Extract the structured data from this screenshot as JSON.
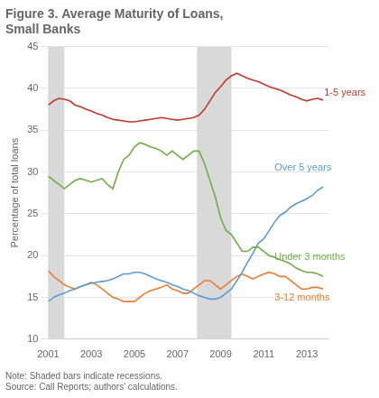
{
  "chart_data": {
    "type": "line",
    "title": [
      "Figure 3. Average Maturity of Loans,",
      "Small Banks"
    ],
    "y_label": "Percentage of total loans",
    "note": "Note: Shaded bars indicate recessions.\nSource: Call Reports; authors' calculations.",
    "x": [
      2001.0,
      2001.25,
      2001.5,
      2001.75,
      2002.0,
      2002.25,
      2002.5,
      2002.75,
      2003.0,
      2003.25,
      2003.5,
      2003.75,
      2004.0,
      2004.25,
      2004.5,
      2004.75,
      2005.0,
      2005.25,
      2005.5,
      2005.75,
      2006.0,
      2006.25,
      2006.5,
      2006.75,
      2007.0,
      2007.25,
      2007.5,
      2007.75,
      2008.0,
      2008.25,
      2008.5,
      2008.75,
      2009.0,
      2009.25,
      2009.5,
      2009.75,
      2010.0,
      2010.25,
      2010.5,
      2010.75,
      2011.0,
      2011.25,
      2011.5,
      2011.75,
      2012.0,
      2012.25,
      2012.5,
      2012.75,
      2013.0,
      2013.25,
      2013.5,
      2013.75
    ],
    "series": [
      {
        "name": "1-5 years",
        "color": "#c0392b",
        "values": [
          38.0,
          38.5,
          38.8,
          38.7,
          38.5,
          38.0,
          37.8,
          37.5,
          37.3,
          37.0,
          36.8,
          36.5,
          36.3,
          36.2,
          36.1,
          36.0,
          36.0,
          36.1,
          36.2,
          36.3,
          36.4,
          36.5,
          36.4,
          36.3,
          36.2,
          36.3,
          36.4,
          36.5,
          36.8,
          37.5,
          38.5,
          39.5,
          40.2,
          41.0,
          41.5,
          41.8,
          41.5,
          41.2,
          41.0,
          40.8,
          40.5,
          40.2,
          40.0,
          39.8,
          39.5,
          39.2,
          39.0,
          38.7,
          38.5,
          38.7,
          38.8,
          38.6
        ]
      },
      {
        "name": "Under 3 months",
        "color": "#70ad47",
        "values": [
          29.5,
          29.0,
          28.5,
          28.0,
          28.5,
          29.0,
          29.2,
          29.0,
          28.8,
          29.0,
          29.2,
          28.5,
          28.0,
          30.0,
          31.5,
          32.0,
          33.0,
          33.5,
          33.3,
          33.0,
          32.8,
          32.5,
          32.0,
          32.5,
          32.0,
          31.5,
          32.0,
          32.5,
          32.5,
          31.0,
          29.0,
          27.0,
          24.5,
          23.0,
          22.5,
          21.5,
          20.5,
          20.5,
          21.0,
          21.0,
          20.5,
          20.0,
          19.8,
          19.5,
          19.3,
          19.0,
          18.5,
          18.2,
          18.0,
          18.0,
          17.8,
          17.5
        ]
      },
      {
        "name": "Over 5 years",
        "color": "#5b9bd5",
        "values": [
          14.5,
          15.0,
          15.3,
          15.5,
          15.8,
          16.0,
          16.3,
          16.5,
          16.7,
          16.8,
          16.9,
          17.0,
          17.2,
          17.5,
          17.8,
          17.8,
          18.0,
          18.0,
          17.8,
          17.5,
          17.2,
          17.0,
          16.8,
          16.5,
          16.3,
          16.0,
          15.8,
          15.5,
          15.2,
          15.0,
          14.8,
          14.8,
          15.0,
          15.5,
          16.0,
          17.0,
          18.0,
          19.2,
          20.3,
          21.5,
          22.0,
          23.0,
          24.0,
          24.8,
          25.2,
          25.8,
          26.2,
          26.5,
          26.8,
          27.2,
          27.8,
          28.2
        ]
      },
      {
        "name": "3-12 months",
        "color": "#ed7d31",
        "values": [
          18.2,
          17.5,
          17.0,
          16.5,
          16.2,
          16.0,
          16.3,
          16.5,
          16.8,
          16.5,
          16.0,
          15.5,
          15.0,
          14.8,
          14.5,
          14.5,
          14.5,
          15.0,
          15.5,
          15.8,
          16.0,
          16.2,
          16.5,
          16.0,
          15.8,
          15.5,
          15.5,
          16.0,
          16.5,
          17.0,
          17.0,
          16.5,
          16.0,
          16.5,
          17.0,
          17.5,
          17.8,
          17.5,
          17.2,
          17.5,
          17.8,
          18.0,
          17.8,
          17.5,
          17.5,
          17.0,
          16.5,
          16.0,
          16.0,
          16.2,
          16.2,
          16.0
        ]
      }
    ],
    "annotations": [
      {
        "text": "1-5 years",
        "x": 2013.8,
        "y": 39.5,
        "color": "#c0392b"
      },
      {
        "text": "Over 5 years",
        "x": 2011.5,
        "y": 30.5,
        "color": "#5b9bd5"
      },
      {
        "text": "Under 3 months",
        "x": 2011.5,
        "y": 19.8,
        "color": "#70ad47"
      },
      {
        "text": "3-12 months",
        "x": 2011.5,
        "y": 15.0,
        "color": "#ed7d31"
      }
    ],
    "bands": [
      [
        2001.0,
        2001.75
      ],
      [
        2007.9,
        2009.5
      ]
    ],
    "band_color": "#d9d9d9",
    "xlim": [
      2001.0,
      2014.0
    ],
    "xticks": [
      2001,
      2003,
      2005,
      2007,
      2009,
      2011,
      2013
    ],
    "ylim": [
      10,
      45
    ],
    "yticks": [
      10,
      15,
      20,
      25,
      30,
      35,
      40,
      45
    ],
    "grid": "y"
  }
}
